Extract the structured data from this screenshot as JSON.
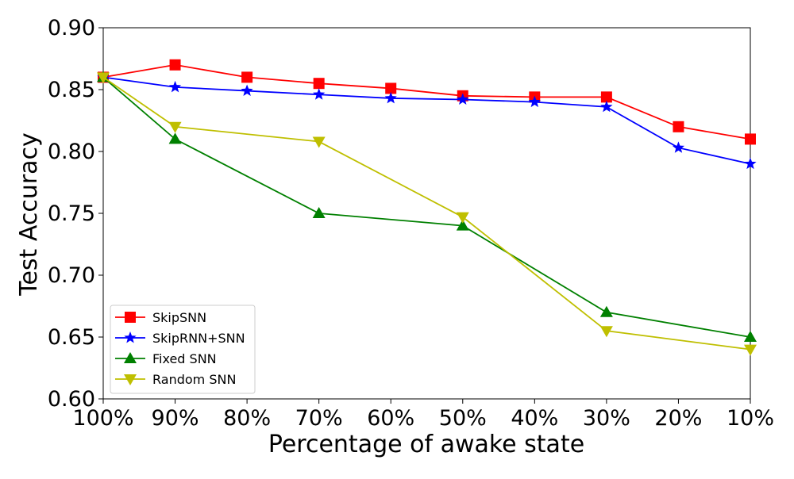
{
  "chart_data": {
    "type": "line",
    "xlabel": "Percentage of awake state",
    "ylabel": "Test Accuracy",
    "categories": [
      "100%",
      "90%",
      "80%",
      "70%",
      "60%",
      "50%",
      "40%",
      "30%",
      "20%",
      "10%"
    ],
    "ylim": [
      0.6,
      0.9
    ],
    "yticks": [
      "0.60",
      "0.65",
      "0.70",
      "0.75",
      "0.80",
      "0.85",
      "0.90"
    ],
    "grid": false,
    "legend_position": "lower-left",
    "series": [
      {
        "name": "SkipSNN",
        "color": "#ff0000",
        "marker": "square",
        "x": [
          "100%",
          "90%",
          "80%",
          "70%",
          "60%",
          "50%",
          "40%",
          "30%",
          "20%",
          "10%"
        ],
        "values": [
          0.86,
          0.87,
          0.86,
          0.855,
          0.851,
          0.845,
          0.844,
          0.844,
          0.82,
          0.81
        ]
      },
      {
        "name": "SkipRNN+SNN",
        "color": "#0000ff",
        "marker": "star",
        "x": [
          "100%",
          "90%",
          "80%",
          "70%",
          "60%",
          "50%",
          "40%",
          "30%",
          "20%",
          "10%"
        ],
        "values": [
          0.86,
          0.852,
          0.849,
          0.846,
          0.843,
          0.842,
          0.84,
          0.836,
          0.803,
          0.79
        ]
      },
      {
        "name": "Fixed SNN",
        "color": "#008000",
        "marker": "triangle-up",
        "x": [
          "100%",
          "90%",
          "70%",
          "50%",
          "30%",
          "10%"
        ],
        "values": [
          0.86,
          0.81,
          0.75,
          0.74,
          0.67,
          0.65
        ]
      },
      {
        "name": "Random SNN",
        "color": "#bfbf00",
        "marker": "triangle-down",
        "x": [
          "100%",
          "90%",
          "70%",
          "50%",
          "30%",
          "10%"
        ],
        "values": [
          0.86,
          0.82,
          0.808,
          0.747,
          0.655,
          0.64
        ]
      }
    ]
  }
}
